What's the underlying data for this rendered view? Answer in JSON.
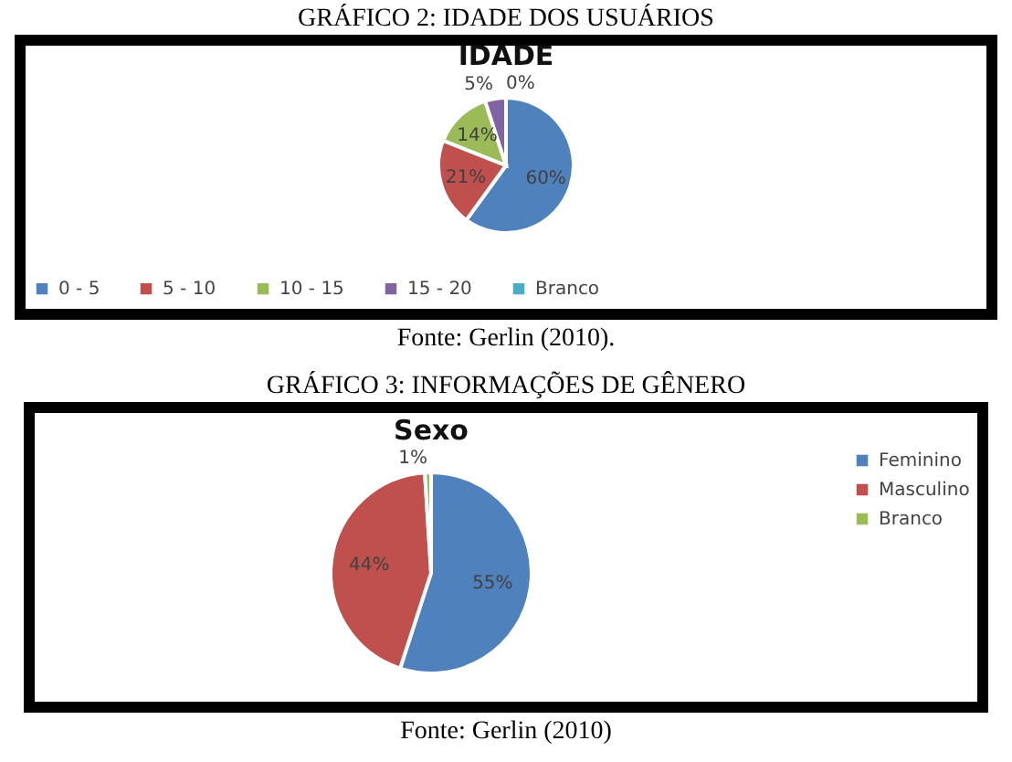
{
  "chart_data": [
    {
      "type": "pie",
      "title": "IDADE",
      "categories": [
        "0 - 5",
        "5 - 10",
        "10 - 15",
        "15 - 20",
        "Branco"
      ],
      "values": [
        60,
        21,
        14,
        5,
        0
      ],
      "value_labels": [
        "60%",
        "21%",
        "14%",
        "5%",
        "0%"
      ],
      "colors": [
        "#4f81bd",
        "#c0504d",
        "#9bbb59",
        "#8064a2",
        "#4bacc6"
      ],
      "legend": "bottom",
      "annotations": [
        "GRÁFICO 2: IDADE DOS USUÁRIOS",
        "Fonte: Gerlin (2010)."
      ]
    },
    {
      "type": "pie",
      "title": "Sexo",
      "categories": [
        "Feminino",
        "Masculino",
        "Branco"
      ],
      "values": [
        55,
        44,
        1
      ],
      "value_labels": [
        "55%",
        "44%",
        "1%"
      ],
      "colors": [
        "#4f81bd",
        "#c0504d",
        "#9bbb59"
      ],
      "legend": "right",
      "annotations": [
        "GRÁFICO 3: INFORMAÇÕES DE GÊNERO",
        "Fonte: Gerlin (2010)"
      ]
    }
  ]
}
